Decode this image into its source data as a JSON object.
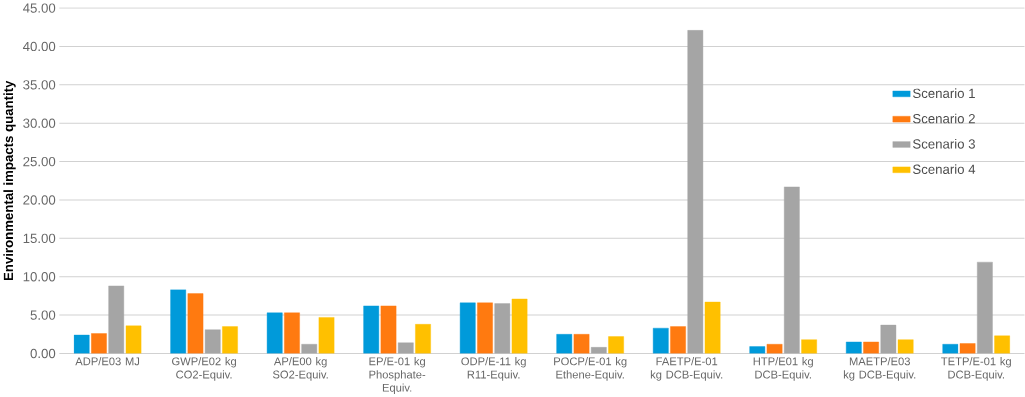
{
  "chart_data": {
    "type": "bar",
    "ylabel": "Environmental impacts quantity",
    "categories": [
      "ADP/E03 MJ",
      "GWP/E02 kg CO2-Equiv.",
      "AP/E00 kg SO2-Equiv.",
      "EP/E-01 kg Phosphate-Equiv.",
      "ODP/E-11 kg R11-Equiv.",
      "POCP/E-01 kg Ethene-Equiv.",
      "FAETP/E-01 kg DCB-Equiv.",
      "HTP/E01 kg DCB-Equiv.",
      "MAETP/E03 kg DCB-Equiv.",
      "TETP/E-01 kg DCB-Equiv."
    ],
    "series": [
      {
        "name": "Scenario 1",
        "color": "#009ada",
        "values": [
          2.4,
          8.3,
          5.3,
          6.2,
          6.6,
          2.5,
          3.3,
          0.9,
          1.5,
          1.2
        ]
      },
      {
        "name": "Scenario 2",
        "color": "#ff7a10",
        "values": [
          2.6,
          7.8,
          5.3,
          6.2,
          6.6,
          2.5,
          3.5,
          1.2,
          1.5,
          1.3
        ]
      },
      {
        "name": "Scenario 3",
        "color": "#a5a5a5",
        "values": [
          8.8,
          3.1,
          1.2,
          1.4,
          6.5,
          0.8,
          42.1,
          21.7,
          3.7,
          11.9
        ]
      },
      {
        "name": "Scenario 4",
        "color": "#ffc000",
        "values": [
          3.6,
          3.5,
          4.7,
          3.8,
          7.1,
          2.2,
          6.7,
          1.8,
          1.8,
          2.3
        ]
      }
    ],
    "ylim": [
      0,
      45
    ],
    "yticks": [
      {
        "value": 0,
        "label": "0.00"
      },
      {
        "value": 5,
        "label": "5.00"
      },
      {
        "value": 10,
        "label": "10.00"
      },
      {
        "value": 15,
        "label": "15.00"
      },
      {
        "value": 20,
        "label": "20.00"
      },
      {
        "value": 25,
        "label": "25.00"
      },
      {
        "value": 30,
        "label": "30.00"
      },
      {
        "value": 35,
        "label": "35.00"
      },
      {
        "value": 40,
        "label": "40.00"
      },
      {
        "value": 45,
        "label": "45.00"
      }
    ],
    "grid": "y",
    "legend": "right"
  }
}
